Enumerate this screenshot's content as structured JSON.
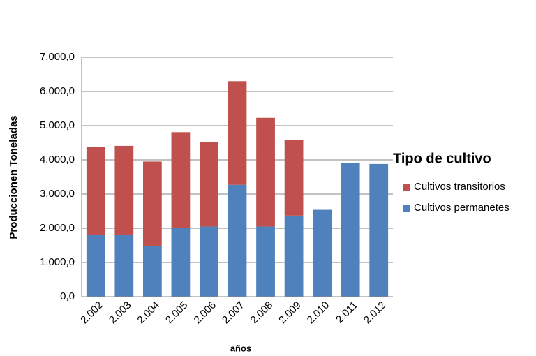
{
  "chart_data": {
    "type": "stacked_bar",
    "categories": [
      "2.002",
      "2.003",
      "2.004",
      "2.005",
      "2.006",
      "2.007",
      "2.008",
      "2.009",
      "2.010",
      "2.011",
      "2.012"
    ],
    "series": [
      {
        "name": "Cultivos permanetes",
        "color": "#4f81bd",
        "values": [
          1800,
          1800,
          1470,
          2000,
          2050,
          3270,
          2050,
          2370,
          2540,
          3900,
          3880
        ]
      },
      {
        "name": "Cultivos transitorios",
        "color": "#c0504d",
        "values": [
          2580,
          2610,
          2480,
          2810,
          2480,
          3030,
          3180,
          2220,
          null,
          null,
          null
        ]
      }
    ],
    "ylim": [
      0,
      7000
    ],
    "yticks": [
      {
        "value": 0,
        "label": "0,0"
      },
      {
        "value": 1000,
        "label": "1.000,0"
      },
      {
        "value": 2000,
        "label": "2.000,0"
      },
      {
        "value": 3000,
        "label": "3.000,0"
      },
      {
        "value": 4000,
        "label": "4.000,0"
      },
      {
        "value": 5000,
        "label": "5.000,0"
      },
      {
        "value": 6000,
        "label": "6.000,0"
      },
      {
        "value": 7000,
        "label": "7.000,0"
      }
    ],
    "grid": true,
    "y_label": "Produccionen Toneladas",
    "x_label": "años",
    "legend_title": "Tipo de cultivo",
    "legend": "right"
  }
}
